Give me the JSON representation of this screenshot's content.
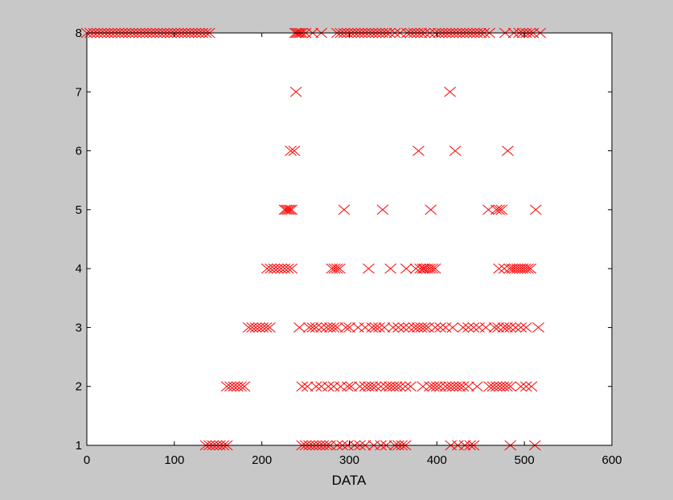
{
  "chart_data": {
    "type": "scatter",
    "title": "",
    "xlabel": "DATA",
    "ylabel": "",
    "xlim": [
      0,
      600
    ],
    "ylim": [
      1,
      8
    ],
    "x_ticks": [
      "0",
      "100",
      "200",
      "300",
      "400",
      "500",
      "600"
    ],
    "y_ticks": [
      "1",
      "2",
      "3",
      "4",
      "5",
      "6",
      "7",
      "8"
    ],
    "grid": false,
    "legend": "none",
    "marker": "x",
    "colors": {
      "marker": "#ff0000",
      "background": "#c8c8c8",
      "plot_area": "#ffffff",
      "axes": "#000000"
    },
    "series": [
      {
        "y": 8,
        "x": [
          0,
          4,
          8,
          12,
          16,
          20,
          24,
          28,
          32,
          36,
          40,
          44,
          48,
          52,
          56,
          60,
          64,
          68,
          72,
          76,
          80,
          84,
          88,
          92,
          96,
          100,
          104,
          108,
          112,
          116,
          120,
          124,
          128,
          132,
          136,
          140,
          238,
          240,
          242,
          244,
          246,
          250,
          258,
          268,
          286,
          290,
          294,
          298,
          302,
          306,
          310,
          314,
          318,
          322,
          326,
          330,
          334,
          338,
          342,
          346,
          352,
          358,
          366,
          370,
          374,
          378,
          382,
          386,
          392,
          398,
          402,
          406,
          410,
          414,
          418,
          422,
          426,
          430,
          434,
          438,
          442,
          446,
          450,
          454,
          460,
          478,
          488,
          494,
          498,
          502,
          506,
          510,
          518
        ]
      },
      {
        "y": 7,
        "x": [
          239,
          415
        ]
      },
      {
        "y": 6,
        "x": [
          233,
          237,
          379,
          421,
          481
        ]
      },
      {
        "y": 5,
        "x": [
          226,
          228,
          230,
          232,
          234,
          294,
          338,
          393,
          459,
          468,
          471,
          474,
          513
        ]
      },
      {
        "y": 4,
        "x": [
          206,
          210,
          214,
          218,
          222,
          226,
          230,
          234,
          280,
          283,
          286,
          289,
          322,
          347,
          365,
          376,
          381,
          384,
          386,
          389,
          392,
          395,
          398,
          471,
          477,
          483,
          486,
          489,
          492,
          495,
          498,
          501,
          504,
          507
        ]
      },
      {
        "y": 3,
        "x": [
          185,
          189,
          193,
          197,
          201,
          205,
          209,
          243,
          254,
          258,
          262,
          268,
          274,
          278,
          282,
          286,
          296,
          300,
          310,
          318,
          326,
          330,
          334,
          340,
          350,
          356,
          362,
          368,
          374,
          378,
          382,
          386,
          390,
          398,
          404,
          410,
          418,
          430,
          436,
          442,
          448,
          456,
          466,
          470,
          476,
          480,
          484,
          490,
          496,
          502,
          516
        ]
      },
      {
        "y": 2,
        "x": [
          160,
          164,
          168,
          172,
          176,
          180,
          246,
          252,
          262,
          268,
          276,
          282,
          290,
          298,
          302,
          312,
          318,
          322,
          326,
          330,
          336,
          342,
          346,
          350,
          354,
          358,
          364,
          370,
          384,
          392,
          396,
          400,
          404,
          410,
          414,
          418,
          422,
          426,
          430,
          436,
          446,
          460,
          464,
          468,
          472,
          476,
          480,
          484,
          496,
          502,
          508
        ]
      },
      {
        "y": 1,
        "x": [
          136,
          140,
          144,
          148,
          152,
          156,
          160,
          246,
          250,
          254,
          258,
          262,
          266,
          270,
          274,
          278,
          286,
          292,
          298,
          306,
          312,
          318,
          328,
          336,
          342,
          352,
          356,
          360,
          364,
          416,
          424,
          432,
          438,
          442,
          484,
          512
        ]
      }
    ]
  }
}
